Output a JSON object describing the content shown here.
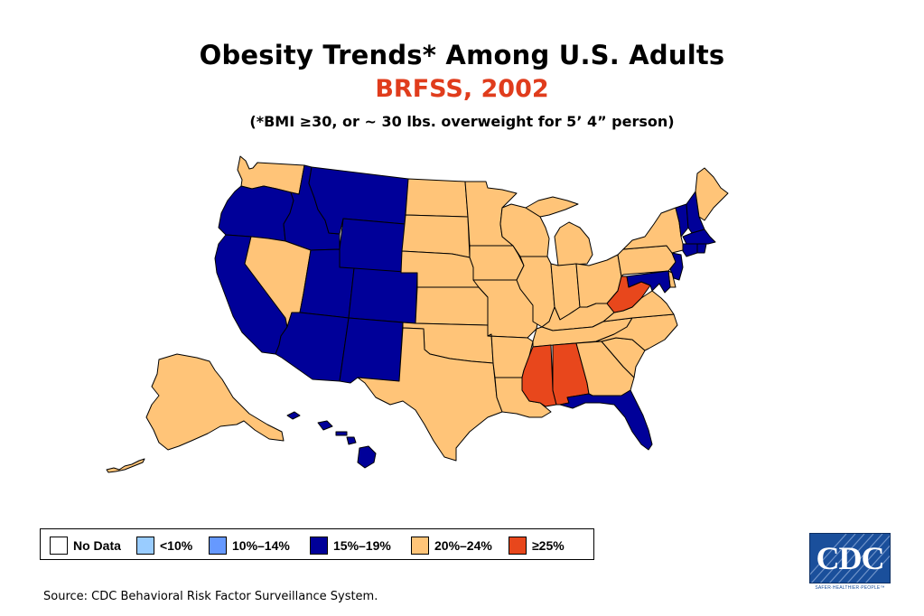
{
  "title": "Obesity Trends* Among U.S. Adults",
  "subtitle": "BRFSS, 2002",
  "note": "(*BMI ≥30, or ~ 30 lbs. overweight for 5’ 4” person)",
  "colors": {
    "no_data": "#ffffff",
    "lt10": "#99ccff",
    "10_14": "#6699ff",
    "15_19": "#000099",
    "20_24": "#ffc478",
    "gte25": "#e8471c",
    "subtitle": "#e03c1c"
  },
  "legend": [
    {
      "label": "No Data",
      "color": "#ffffff"
    },
    {
      "label": "<10%",
      "color": "#99ccff"
    },
    {
      "label": "10%–14%",
      "color": "#6699ff"
    },
    {
      "label": "15%–19%",
      "color": "#000099"
    },
    {
      "label": "20%–24%",
      "color": "#ffc478"
    },
    {
      "label": "≥25%",
      "color": "#e8471c"
    }
  ],
  "states": {
    "WA": "20%–24%",
    "OR": "15%–19%",
    "CA": "15%–19%",
    "ID": "15%–19%",
    "NV": "20%–24%",
    "MT": "15%–19%",
    "WY": "15%–19%",
    "UT": "15%–19%",
    "AZ": "15%–19%",
    "CO": "15%–19%",
    "NM": "15%–19%",
    "ND": "20%–24%",
    "SD": "20%–24%",
    "NE": "20%–24%",
    "KS": "20%–24%",
    "OK": "20%–24%",
    "TX": "20%–24%",
    "MN": "20%–24%",
    "IA": "20%–24%",
    "MO": "20%–24%",
    "AR": "20%–24%",
    "LA": "20%–24%",
    "WI": "20%–24%",
    "IL": "20%–24%",
    "MI": "20%–24%",
    "IN": "20%–24%",
    "OH": "20%–24%",
    "KY": "20%–24%",
    "TN": "20%–24%",
    "MS": "≥25%",
    "AL": "≥25%",
    "GA": "20%–24%",
    "FL": "15%–19%",
    "SC": "20%–24%",
    "NC": "20%–24%",
    "VA": "20%–24%",
    "WV": "≥25%",
    "PA": "20%–24%",
    "NY": "20%–24%",
    "ME": "20%–24%",
    "NH": "15%–19%",
    "VT": "15%–19%",
    "MA": "15%–19%",
    "CT": "15%–19%",
    "RI": "15%–19%",
    "NJ": "15%–19%",
    "DE": "20%–24%",
    "MD": "15%–19%",
    "DC": "15%–19%",
    "AK": "20%–24%",
    "HI": "15%–19%"
  },
  "logo": {
    "text": "CDC",
    "tagline": "SAFER·HEALTHIER·PEOPLE™"
  },
  "source": "Source: CDC Behavioral Risk Factor Surveillance System."
}
